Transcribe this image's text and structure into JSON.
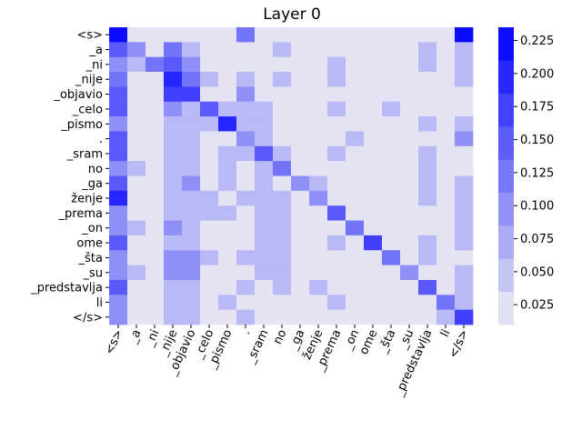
{
  "chart_data": {
    "type": "heatmap",
    "title": "Layer 0",
    "row_labels": [
      "<s>",
      "_a",
      "_ni",
      "_nije",
      "_objavio",
      "_celo",
      "_pismo",
      ".",
      "_sram",
      "no",
      "_ga",
      "ženje",
      "_prema",
      "_on",
      "ome",
      "_šta",
      "_su",
      "_predstavlja",
      "li",
      "</s>"
    ],
    "col_labels": [
      "<s>",
      "_a",
      "_ni",
      "_nije",
      "_objavio",
      "_celo",
      "_pismo",
      ".",
      "_sram",
      "no",
      "_ga",
      "ženje",
      "_prema",
      "_on",
      "ome",
      "_šta",
      "_su",
      "_predstavlja",
      "li",
      "</s>"
    ],
    "values": [
      [
        0.225,
        0.02,
        0.02,
        0.02,
        0.02,
        0.02,
        0.02,
        0.125,
        0.02,
        0.02,
        0.02,
        0.02,
        0.02,
        0.02,
        0.02,
        0.02,
        0.02,
        0.02,
        0.02,
        0.225
      ],
      [
        0.15,
        0.1,
        0.02,
        0.125,
        0.06,
        0.02,
        0.02,
        0.02,
        0.02,
        0.06,
        0.02,
        0.02,
        0.02,
        0.02,
        0.02,
        0.02,
        0.02,
        0.06,
        0.02,
        0.06
      ],
      [
        0.1,
        0.06,
        0.125,
        0.15,
        0.1,
        0.02,
        0.02,
        0.02,
        0.02,
        0.02,
        0.02,
        0.02,
        0.06,
        0.02,
        0.02,
        0.02,
        0.02,
        0.06,
        0.02,
        0.06
      ],
      [
        0.125,
        0.02,
        0.02,
        0.2,
        0.125,
        0.06,
        0.02,
        0.06,
        0.02,
        0.06,
        0.02,
        0.02,
        0.06,
        0.02,
        0.02,
        0.02,
        0.02,
        0.02,
        0.02,
        0.06
      ],
      [
        0.15,
        0.02,
        0.02,
        0.175,
        0.175,
        0.02,
        0.02,
        0.1,
        0.02,
        0.02,
        0.02,
        0.02,
        0.02,
        0.02,
        0.02,
        0.02,
        0.02,
        0.02,
        0.02,
        0.02
      ],
      [
        0.15,
        0.02,
        0.02,
        0.1,
        0.06,
        0.15,
        0.06,
        0.06,
        0.06,
        0.02,
        0.02,
        0.02,
        0.06,
        0.02,
        0.02,
        0.06,
        0.02,
        0.02,
        0.02,
        0.02
      ],
      [
        0.1,
        0.02,
        0.02,
        0.06,
        0.06,
        0.06,
        0.2,
        0.06,
        0.06,
        0.02,
        0.02,
        0.02,
        0.02,
        0.02,
        0.02,
        0.02,
        0.02,
        0.06,
        0.02,
        0.06
      ],
      [
        0.15,
        0.02,
        0.02,
        0.06,
        0.06,
        0.02,
        0.02,
        0.1,
        0.06,
        0.02,
        0.02,
        0.02,
        0.02,
        0.06,
        0.02,
        0.02,
        0.02,
        0.02,
        0.02,
        0.1
      ],
      [
        0.15,
        0.02,
        0.02,
        0.06,
        0.06,
        0.02,
        0.06,
        0.06,
        0.15,
        0.06,
        0.02,
        0.02,
        0.06,
        0.02,
        0.02,
        0.02,
        0.02,
        0.06,
        0.02,
        0.02
      ],
      [
        0.1,
        0.06,
        0.02,
        0.06,
        0.06,
        0.02,
        0.06,
        0.02,
        0.06,
        0.125,
        0.02,
        0.02,
        0.02,
        0.02,
        0.02,
        0.02,
        0.02,
        0.06,
        0.02,
        0.02
      ],
      [
        0.15,
        0.02,
        0.02,
        0.06,
        0.1,
        0.02,
        0.06,
        0.02,
        0.06,
        0.02,
        0.1,
        0.06,
        0.02,
        0.02,
        0.02,
        0.02,
        0.02,
        0.06,
        0.02,
        0.06
      ],
      [
        0.2,
        0.02,
        0.02,
        0.06,
        0.06,
        0.06,
        0.02,
        0.06,
        0.06,
        0.06,
        0.02,
        0.1,
        0.02,
        0.02,
        0.02,
        0.02,
        0.02,
        0.06,
        0.02,
        0.06
      ],
      [
        0.1,
        0.02,
        0.02,
        0.06,
        0.06,
        0.06,
        0.06,
        0.02,
        0.06,
        0.06,
        0.02,
        0.02,
        0.15,
        0.02,
        0.02,
        0.02,
        0.02,
        0.02,
        0.02,
        0.06
      ],
      [
        0.1,
        0.06,
        0.02,
        0.1,
        0.06,
        0.02,
        0.02,
        0.02,
        0.06,
        0.06,
        0.02,
        0.02,
        0.02,
        0.125,
        0.02,
        0.02,
        0.02,
        0.02,
        0.02,
        0.06
      ],
      [
        0.15,
        0.02,
        0.02,
        0.06,
        0.06,
        0.02,
        0.02,
        0.02,
        0.06,
        0.06,
        0.02,
        0.02,
        0.06,
        0.02,
        0.175,
        0.02,
        0.02,
        0.06,
        0.02,
        0.06
      ],
      [
        0.1,
        0.02,
        0.02,
        0.1,
        0.1,
        0.06,
        0.02,
        0.06,
        0.06,
        0.06,
        0.02,
        0.02,
        0.02,
        0.02,
        0.02,
        0.125,
        0.02,
        0.06,
        0.02,
        0.02
      ],
      [
        0.1,
        0.06,
        0.02,
        0.1,
        0.1,
        0.02,
        0.02,
        0.02,
        0.06,
        0.06,
        0.02,
        0.02,
        0.02,
        0.02,
        0.02,
        0.02,
        0.1,
        0.02,
        0.02,
        0.06
      ],
      [
        0.15,
        0.02,
        0.02,
        0.06,
        0.06,
        0.02,
        0.02,
        0.06,
        0.02,
        0.06,
        0.02,
        0.06,
        0.02,
        0.02,
        0.02,
        0.02,
        0.02,
        0.15,
        0.02,
        0.06
      ],
      [
        0.1,
        0.02,
        0.02,
        0.06,
        0.06,
        0.02,
        0.06,
        0.02,
        0.02,
        0.02,
        0.02,
        0.02,
        0.06,
        0.02,
        0.02,
        0.02,
        0.02,
        0.02,
        0.125,
        0.06
      ],
      [
        0.1,
        0.02,
        0.02,
        0.06,
        0.06,
        0.02,
        0.02,
        0.06,
        0.02,
        0.02,
        0.02,
        0.02,
        0.02,
        0.02,
        0.02,
        0.02,
        0.02,
        0.02,
        0.06,
        0.175
      ]
    ],
    "colorbar": {
      "ticks": [
        "0.025",
        "0.050",
        "0.075",
        "0.100",
        "0.125",
        "0.150",
        "0.175",
        "0.200",
        "0.225"
      ],
      "min": 0.01,
      "max": 0.235,
      "low_color": "#eeeef3",
      "high_color": "#0000ff"
    },
    "grid": false
  }
}
